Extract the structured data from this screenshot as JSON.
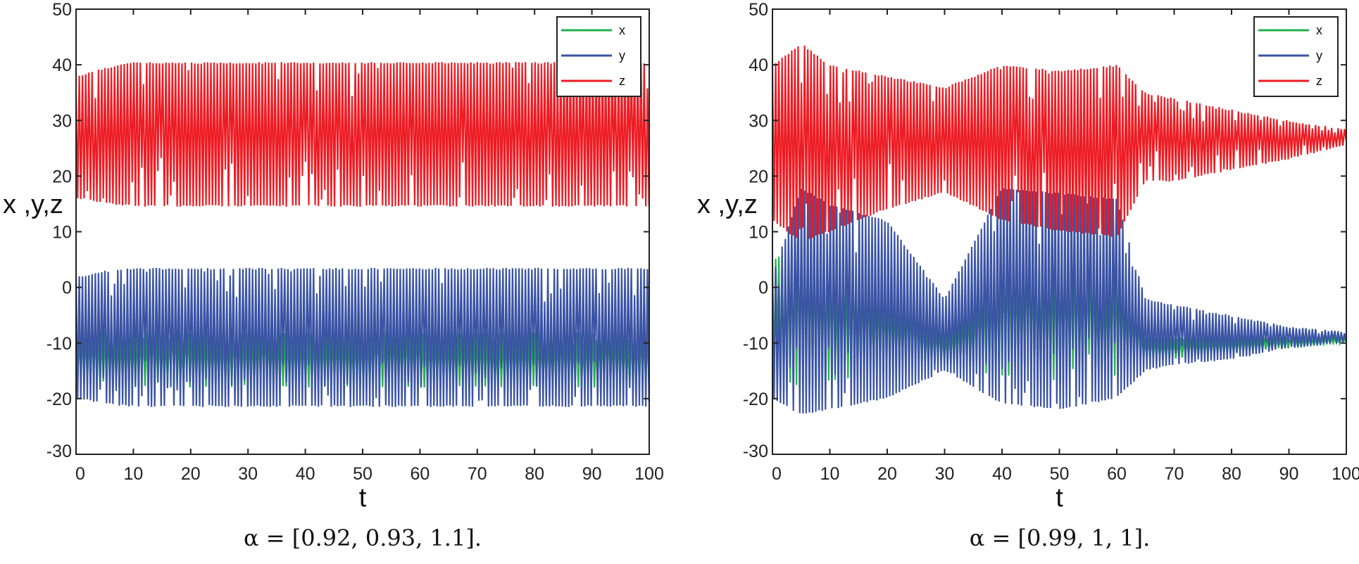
{
  "chart_data": [
    {
      "type": "line",
      "caption": "α = [0.92, 0.93, 1.1].",
      "xlabel": "t",
      "ylabel": "x ,y,z",
      "xlim": [
        0,
        100
      ],
      "ylim": [
        -30,
        50
      ],
      "xticks": [
        0,
        10,
        20,
        30,
        40,
        50,
        60,
        70,
        80,
        90,
        100
      ],
      "yticks": [
        -30,
        -20,
        -10,
        0,
        10,
        20,
        30,
        40,
        50
      ],
      "grid": false,
      "legend_placement": "top-right",
      "envelope_t": [
        0,
        5,
        10,
        20,
        30,
        40,
        50,
        60,
        70,
        80,
        90,
        100
      ],
      "series": [
        {
          "name": "x",
          "color": "#22b14c",
          "upper": [
            -8,
            -8,
            -8,
            -8,
            -8,
            -8,
            -8,
            -8,
            -8,
            -8,
            -8,
            -8
          ],
          "lower": [
            -17,
            -18,
            -18,
            -18,
            -18,
            -18,
            -18,
            -18,
            -18,
            -18,
            -18,
            -18
          ]
        },
        {
          "name": "y",
          "color": "#3a53a4",
          "upper": [
            2,
            3,
            3.5,
            3.5,
            3.5,
            3.5,
            3.5,
            3.5,
            3.5,
            3.5,
            3.5,
            3.5
          ],
          "lower": [
            -20,
            -21,
            -21.5,
            -21.5,
            -21.5,
            -21.5,
            -21.5,
            -21.5,
            -21.5,
            -21.5,
            -21.5,
            -21.5
          ]
        },
        {
          "name": "z",
          "color": "#ed1c24",
          "upper": [
            38,
            39.5,
            40.5,
            40.5,
            40.5,
            40.5,
            40.5,
            40.5,
            40.5,
            40.5,
            40.5,
            40.5
          ],
          "lower": [
            16,
            15,
            14.5,
            14.5,
            14.5,
            14.5,
            14.5,
            14.5,
            14.5,
            14.5,
            14.5,
            14.5
          ]
        }
      ]
    },
    {
      "type": "line",
      "caption": "α = [0.99, 1, 1].",
      "xlabel": "t",
      "ylabel": "x ,y,z",
      "xlim": [
        0,
        100
      ],
      "ylim": [
        -30,
        50
      ],
      "xticks": [
        0,
        10,
        20,
        30,
        40,
        50,
        60,
        70,
        80,
        90,
        100
      ],
      "yticks": [
        -30,
        -20,
        -10,
        0,
        10,
        20,
        30,
        40,
        50
      ],
      "grid": false,
      "legend_placement": "top-right",
      "envelope_t": [
        0,
        5,
        10,
        20,
        30,
        40,
        50,
        60,
        65,
        70,
        80,
        90,
        100
      ],
      "series": [
        {
          "name": "x",
          "color": "#22b14c",
          "upper": [
            5,
            8,
            6,
            0,
            -8,
            5,
            6,
            5,
            -9,
            -9,
            -9,
            -9,
            -9
          ],
          "lower": [
            -16,
            -18,
            -17,
            -15,
            -14,
            -16,
            -17,
            -16,
            -13,
            -13,
            -12,
            -11,
            -10
          ]
        },
        {
          "name": "y",
          "color": "#3a53a4",
          "upper": [
            2,
            18,
            15,
            12,
            -2,
            18,
            17,
            16,
            -2,
            -3,
            -5,
            -7,
            -8
          ],
          "lower": [
            -20,
            -23,
            -22,
            -20,
            -15,
            -21,
            -22,
            -20,
            -15,
            -14,
            -13,
            -11,
            -10
          ]
        },
        {
          "name": "z",
          "color": "#ed1c24",
          "upper": [
            40,
            44,
            40,
            38,
            36,
            40,
            39,
            40,
            35,
            34,
            32,
            30,
            28.5
          ],
          "lower": [
            12,
            8,
            10,
            14,
            17,
            12,
            10,
            9,
            19,
            19,
            21,
            23,
            25.5
          ]
        }
      ]
    }
  ]
}
